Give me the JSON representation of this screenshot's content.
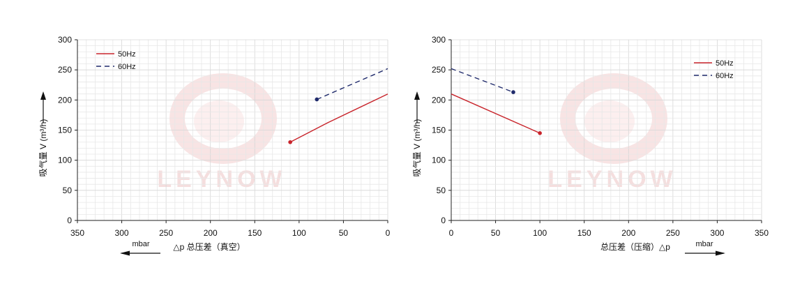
{
  "chart_data": [
    {
      "type": "line",
      "x_reversed": true,
      "xlim": [
        0,
        350
      ],
      "ylim": [
        0,
        300
      ],
      "xticks": [
        "350",
        "300",
        "250",
        "200",
        "150",
        "100",
        "50",
        "0"
      ],
      "yticks": [
        "300",
        "250",
        "200",
        "150",
        "100",
        "50",
        "0"
      ],
      "xlabel": "△p 总压差（真空）",
      "ylabel": "吸气量 V (m³/h)",
      "x_unit": "mbar",
      "legend": "top-left",
      "grid": true,
      "series": [
        {
          "name": "50Hz",
          "color": "#c8242b",
          "dash": "solid",
          "x": [
            110,
            68,
            0
          ],
          "y": [
            130,
            162,
            210
          ],
          "end_marker": "start"
        },
        {
          "name": "60Hz",
          "color": "#1f2a6b",
          "dash": "dashed",
          "x": [
            80,
            0
          ],
          "y": [
            201,
            252
          ],
          "end_marker": "start"
        }
      ]
    },
    {
      "type": "line",
      "x_reversed": false,
      "xlim": [
        0,
        350
      ],
      "ylim": [
        0,
        300
      ],
      "xticks": [
        "0",
        "50",
        "100",
        "150",
        "200",
        "250",
        "300",
        "350"
      ],
      "yticks": [
        "300",
        "250",
        "200",
        "150",
        "100",
        "50",
        "0"
      ],
      "xlabel": "总压差（压缩）△p",
      "ylabel": "吸气量 V (m³/h)",
      "x_unit": "mbar",
      "legend": "top-right",
      "grid": true,
      "series": [
        {
          "name": "50Hz",
          "color": "#c8242b",
          "dash": "solid",
          "x": [
            0,
            100
          ],
          "y": [
            210,
            145
          ],
          "end_marker": "end"
        },
        {
          "name": "60Hz",
          "color": "#1f2a6b",
          "dash": "dashed",
          "x": [
            0,
            70
          ],
          "y": [
            252,
            213
          ],
          "end_marker": "end"
        }
      ]
    }
  ],
  "watermark": "LEYNOW"
}
